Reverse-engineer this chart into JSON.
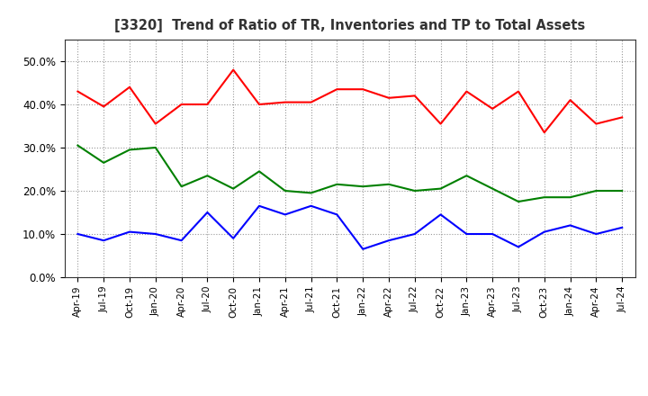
{
  "title": "[3320]  Trend of Ratio of TR, Inventories and TP to Total Assets",
  "labels": [
    "Apr-19",
    "Jul-19",
    "Oct-19",
    "Jan-20",
    "Apr-20",
    "Jul-20",
    "Oct-20",
    "Jan-21",
    "Apr-21",
    "Jul-21",
    "Oct-21",
    "Jan-22",
    "Apr-22",
    "Jul-22",
    "Oct-22",
    "Jan-23",
    "Apr-23",
    "Jul-23",
    "Oct-23",
    "Jan-24",
    "Apr-24",
    "Jul-24"
  ],
  "trade_receivables": [
    0.43,
    0.395,
    0.44,
    0.355,
    0.4,
    0.4,
    0.48,
    0.4,
    0.405,
    0.405,
    0.435,
    0.435,
    0.415,
    0.42,
    0.355,
    0.43,
    0.39,
    0.43,
    0.335,
    0.41,
    0.355,
    0.37
  ],
  "inventories": [
    0.1,
    0.085,
    0.105,
    0.1,
    0.085,
    0.15,
    0.09,
    0.165,
    0.145,
    0.165,
    0.145,
    0.065,
    0.085,
    0.1,
    0.145,
    0.1,
    0.1,
    0.07,
    0.105,
    0.12,
    0.1,
    0.115
  ],
  "trade_payables": [
    0.305,
    0.265,
    0.295,
    0.3,
    0.21,
    0.235,
    0.205,
    0.245,
    0.2,
    0.195,
    0.215,
    0.21,
    0.215,
    0.2,
    0.205,
    0.235,
    0.205,
    0.175,
    0.185,
    0.185,
    0.2,
    0.2
  ],
  "tr_color": "#FF0000",
  "inv_color": "#0000FF",
  "tp_color": "#008000",
  "ylim": [
    0.0,
    0.55
  ],
  "yticks": [
    0.0,
    0.1,
    0.2,
    0.3,
    0.4,
    0.5
  ],
  "background_color": "#FFFFFF",
  "grid_color": "#999999"
}
